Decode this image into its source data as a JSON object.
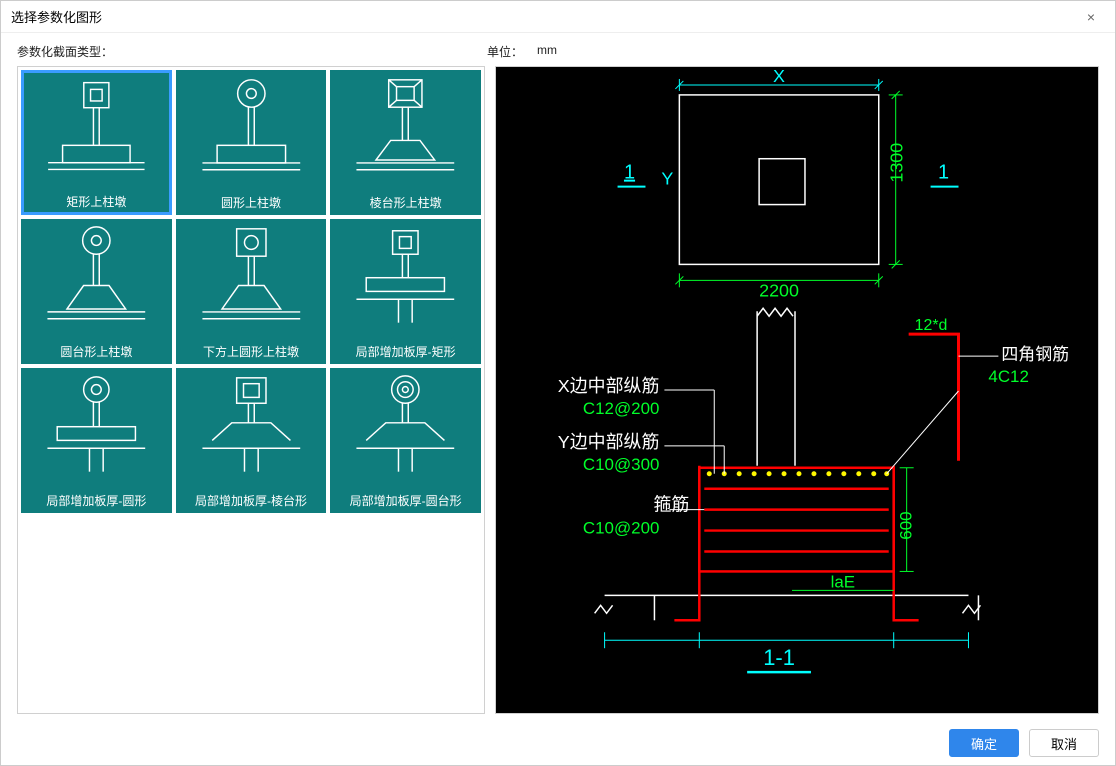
{
  "dialog": {
    "title": "选择参数化图形",
    "close_icon": "×"
  },
  "labels": {
    "section_type": "参数化截面类型：",
    "unit_label": "单位：",
    "unit_value": "mm"
  },
  "shapes": [
    {
      "id": "rect-top",
      "label": "矩形上柱墩",
      "selected": true,
      "icon_type": "rect_top"
    },
    {
      "id": "circ-top",
      "label": "圆形上柱墩",
      "selected": false,
      "icon_type": "circ_top"
    },
    {
      "id": "prism-top",
      "label": "棱台形上柱墩",
      "selected": false,
      "icon_type": "prism_top"
    },
    {
      "id": "cone-top",
      "label": "圆台形上柱墩",
      "selected": false,
      "icon_type": "cone_top"
    },
    {
      "id": "sq-circ-top",
      "label": "下方上圆形上柱墩",
      "selected": false,
      "icon_type": "sq_circ_top"
    },
    {
      "id": "thick-rect",
      "label": "局部增加板厚-矩形",
      "selected": false,
      "icon_type": "thick_rect"
    },
    {
      "id": "thick-circ",
      "label": "局部增加板厚-圆形",
      "selected": false,
      "icon_type": "thick_circ"
    },
    {
      "id": "thick-prism",
      "label": "局部增加板厚-棱台形",
      "selected": false,
      "icon_type": "thick_prism"
    },
    {
      "id": "thick-cone",
      "label": "局部增加板厚-圆台形",
      "selected": false,
      "icon_type": "thick_cone"
    }
  ],
  "preview": {
    "colors": {
      "bg": "#000000",
      "outline": "#ffffff",
      "dim_cyan": "#00ffff",
      "text_green": "#00ff2a",
      "rebar_red": "#ff0000",
      "rebar_dot": "#fff700"
    },
    "plan": {
      "width_label": "2200",
      "height_label": "1300",
      "x_label": "X",
      "y_label": "Y",
      "section_mark": "1"
    },
    "section": {
      "section_label": "1-1",
      "height_label": "600",
      "anchorage_label": "laE",
      "corner_label": "12*d",
      "corner_text_1": "四角钢筋",
      "corner_text_2": "4C12",
      "x_mid_label": "X边中部纵筋",
      "x_mid_val": "C12@200",
      "y_mid_label": "Y边中部纵筋",
      "y_mid_val": "C10@300",
      "stirrup_label": "箍筋",
      "stirrup_val": "C10@200"
    }
  },
  "footer": {
    "ok": "确定",
    "cancel": "取消"
  }
}
